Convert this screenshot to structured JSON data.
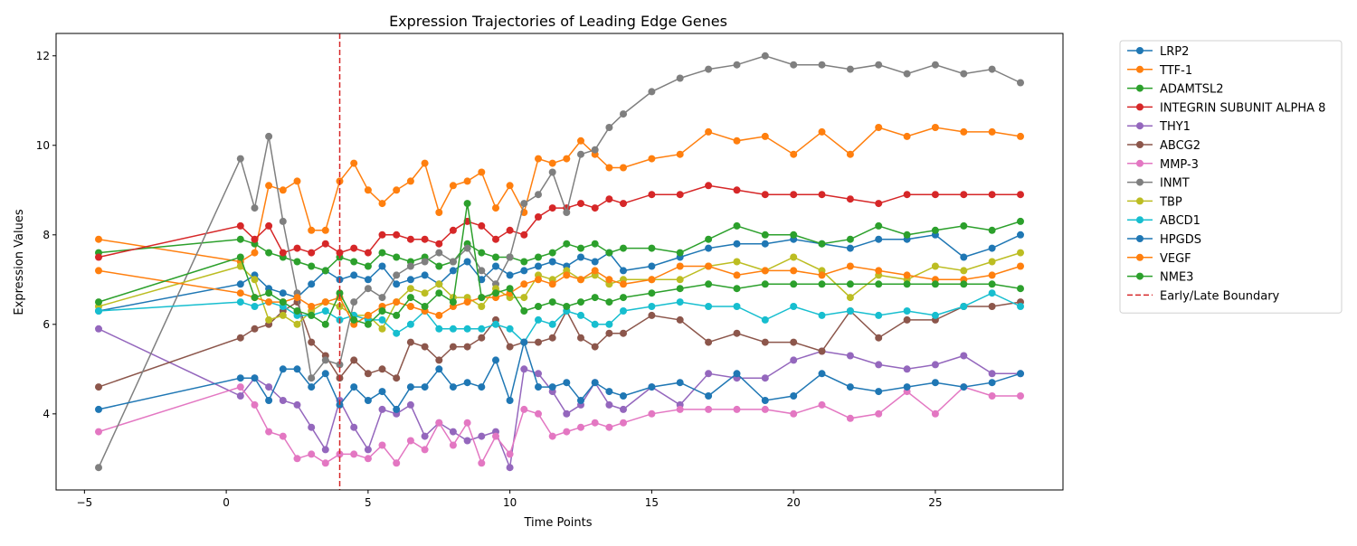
{
  "chart_data": {
    "type": "line",
    "title": "Expression Trajectories of Leading Edge Genes",
    "xlabel": "Time Points",
    "ylabel": "Expression Values",
    "xlim": [
      -6,
      29.5
    ],
    "ylim": [
      2.3,
      12.5
    ],
    "xticks": [
      -5,
      0,
      5,
      10,
      15,
      20,
      25
    ],
    "yticks": [
      4,
      6,
      8,
      10,
      12
    ],
    "grid": false,
    "legend_position": "outside-right",
    "boundary": {
      "x": 4,
      "label": "Early/Late Boundary",
      "color": "#d62728"
    },
    "x": [
      -4.5,
      0.5,
      1,
      1.5,
      2,
      2.5,
      3,
      3.5,
      4,
      4.5,
      5,
      5.5,
      6,
      6.5,
      7,
      7.5,
      8,
      8.5,
      9,
      9.5,
      10,
      10.5,
      11,
      11.5,
      12,
      12.5,
      13,
      13.5,
      14,
      15,
      16,
      17,
      18,
      19,
      20,
      21,
      22,
      23,
      24,
      25,
      26,
      27,
      28
    ],
    "series": [
      {
        "name": "LRP2",
        "color": "#1f77b4",
        "values": [
          6.3,
          6.9,
          7.1,
          6.8,
          6.7,
          6.6,
          6.9,
          7.2,
          7.0,
          7.1,
          7.0,
          7.3,
          6.9,
          7.0,
          7.1,
          6.9,
          7.2,
          7.4,
          7.0,
          7.3,
          7.1,
          7.2,
          7.3,
          7.4,
          7.3,
          7.5,
          7.4,
          7.6,
          7.2,
          7.3,
          7.5,
          7.7,
          7.8,
          7.8,
          7.9,
          7.8,
          7.7,
          7.9,
          7.9,
          8.0,
          7.5,
          7.7,
          8.0
        ]
      },
      {
        "name": "TTF-1",
        "color": "#ff7f0e",
        "values": [
          7.9,
          7.4,
          7.6,
          9.1,
          9.0,
          9.2,
          8.1,
          8.1,
          9.2,
          9.6,
          9.0,
          8.7,
          9.0,
          9.2,
          9.6,
          8.5,
          9.1,
          9.2,
          9.4,
          8.6,
          9.1,
          8.5,
          9.7,
          9.6,
          9.7,
          10.1,
          9.8,
          9.5,
          9.5,
          9.7,
          9.8,
          10.3,
          10.1,
          10.2,
          9.8,
          10.3,
          9.8,
          10.4,
          10.2,
          10.4,
          10.3,
          10.3,
          10.2
        ]
      },
      {
        "name": "ADAMTSL2",
        "color": "#2ca02c",
        "values": [
          7.6,
          7.9,
          7.8,
          7.6,
          7.5,
          7.4,
          7.3,
          7.2,
          7.5,
          7.4,
          7.3,
          7.6,
          7.5,
          7.4,
          7.5,
          7.3,
          7.4,
          7.8,
          7.6,
          7.5,
          7.5,
          7.4,
          7.5,
          7.6,
          7.8,
          7.7,
          7.8,
          7.6,
          7.7,
          7.7,
          7.6,
          7.9,
          8.2,
          8.0,
          8.0,
          7.8,
          7.9,
          8.2,
          8.0,
          8.1,
          8.2,
          8.1,
          8.3
        ]
      },
      {
        "name": "INTEGRIN SUBUNIT ALPHA 8",
        "color": "#d62728",
        "values": [
          7.5,
          8.2,
          7.9,
          8.2,
          7.6,
          7.7,
          7.6,
          7.8,
          7.6,
          7.7,
          7.6,
          8.0,
          8.0,
          7.9,
          7.9,
          7.8,
          8.1,
          8.3,
          8.2,
          7.9,
          8.1,
          8.0,
          8.4,
          8.6,
          8.6,
          8.7,
          8.6,
          8.8,
          8.7,
          8.9,
          8.9,
          9.1,
          9.0,
          8.9,
          8.9,
          8.9,
          8.8,
          8.7,
          8.9,
          8.9,
          8.9,
          8.9,
          8.9
        ]
      },
      {
        "name": "THY1",
        "color": "#9467bd",
        "values": [
          5.9,
          4.4,
          4.8,
          4.6,
          4.3,
          4.2,
          3.7,
          3.2,
          4.3,
          3.7,
          3.2,
          4.1,
          4.0,
          4.2,
          3.5,
          3.8,
          3.6,
          3.4,
          3.5,
          3.6,
          2.8,
          5.0,
          4.9,
          4.5,
          4.0,
          4.2,
          4.7,
          4.2,
          4.1,
          4.6,
          4.2,
          4.9,
          4.8,
          4.8,
          5.2,
          5.4,
          5.3,
          5.1,
          5.0,
          5.1,
          5.3,
          4.9,
          4.9
        ]
      },
      {
        "name": "ABCG2",
        "color": "#8c564b",
        "values": [
          4.6,
          5.7,
          5.9,
          6.0,
          6.3,
          6.5,
          5.6,
          5.3,
          4.8,
          5.2,
          4.9,
          5.0,
          4.8,
          5.6,
          5.5,
          5.2,
          5.5,
          5.5,
          5.7,
          6.1,
          5.5,
          5.6,
          5.6,
          5.7,
          6.3,
          5.7,
          5.5,
          5.8,
          5.8,
          6.2,
          6.1,
          5.6,
          5.8,
          5.6,
          5.6,
          5.4,
          6.3,
          5.7,
          6.1,
          6.1,
          6.4,
          6.4,
          6.5
        ]
      },
      {
        "name": "MMP-3",
        "color": "#e377c2",
        "values": [
          3.6,
          4.6,
          4.2,
          3.6,
          3.5,
          3.0,
          3.1,
          2.9,
          3.1,
          3.1,
          3.0,
          3.3,
          2.9,
          3.4,
          3.2,
          3.8,
          3.3,
          3.8,
          2.9,
          3.5,
          3.1,
          4.1,
          4.0,
          3.5,
          3.6,
          3.7,
          3.8,
          3.7,
          3.8,
          4.0,
          4.1,
          4.1,
          4.1,
          4.1,
          4.0,
          4.2,
          3.9,
          4.0,
          4.5,
          4.0,
          4.6,
          4.4,
          4.4
        ]
      },
      {
        "name": "INMT",
        "color": "#7f7f7f",
        "values": [
          2.8,
          9.7,
          8.6,
          10.2,
          8.3,
          6.7,
          4.8,
          5.2,
          5.1,
          6.5,
          6.8,
          6.6,
          7.1,
          7.3,
          7.4,
          7.6,
          7.4,
          7.7,
          7.2,
          6.9,
          7.5,
          8.7,
          8.9,
          9.4,
          8.5,
          9.8,
          9.9,
          10.4,
          10.7,
          11.2,
          11.5,
          11.7,
          11.8,
          12.0,
          11.8,
          11.8,
          11.7,
          11.8,
          11.6,
          11.8,
          11.6,
          11.7,
          11.4
        ]
      },
      {
        "name": "TBP",
        "color": "#bcbd22",
        "values": [
          6.4,
          7.3,
          7.0,
          6.1,
          6.2,
          6.0,
          6.3,
          6.5,
          6.4,
          6.2,
          6.2,
          5.9,
          6.5,
          6.8,
          6.7,
          6.9,
          6.6,
          6.6,
          6.4,
          6.8,
          6.6,
          6.6,
          7.1,
          7.0,
          7.2,
          7.0,
          7.1,
          6.9,
          7.0,
          7.0,
          7.0,
          7.3,
          7.4,
          7.2,
          7.5,
          7.2,
          6.6,
          7.1,
          7.0,
          7.3,
          7.2,
          7.4,
          7.6
        ]
      },
      {
        "name": "ABCD1",
        "color": "#17becf",
        "values": [
          6.3,
          6.5,
          6.4,
          6.5,
          6.4,
          6.2,
          6.2,
          6.3,
          6.1,
          6.2,
          6.1,
          6.1,
          5.8,
          6.0,
          6.3,
          5.9,
          5.9,
          5.9,
          5.9,
          6.0,
          5.9,
          5.6,
          6.1,
          6.0,
          6.3,
          6.2,
          6.0,
          6.0,
          6.3,
          6.4,
          6.5,
          6.4,
          6.4,
          6.1,
          6.4,
          6.2,
          6.3,
          6.2,
          6.3,
          6.2,
          6.4,
          6.7,
          6.4
        ]
      },
      {
        "name": "HPGDS",
        "color": "#1f77b4",
        "values": [
          4.1,
          4.8,
          4.8,
          4.3,
          5.0,
          5.0,
          4.6,
          4.9,
          4.2,
          4.6,
          4.3,
          4.5,
          4.1,
          4.6,
          4.6,
          5.0,
          4.6,
          4.7,
          4.6,
          5.2,
          4.3,
          5.6,
          4.6,
          4.6,
          4.7,
          4.3,
          4.7,
          4.5,
          4.4,
          4.6,
          4.7,
          4.4,
          4.9,
          4.3,
          4.4,
          4.9,
          4.6,
          4.5,
          4.6,
          4.7,
          4.6,
          4.7,
          4.9
        ]
      },
      {
        "name": "VEGF",
        "color": "#ff7f0e",
        "values": [
          7.2,
          6.7,
          6.6,
          6.5,
          6.5,
          6.6,
          6.4,
          6.5,
          6.6,
          6.0,
          6.2,
          6.4,
          6.5,
          6.4,
          6.3,
          6.2,
          6.4,
          6.5,
          6.6,
          6.6,
          6.7,
          6.9,
          7.0,
          6.9,
          7.1,
          7.0,
          7.2,
          7.0,
          6.9,
          7.0,
          7.3,
          7.3,
          7.1,
          7.2,
          7.2,
          7.1,
          7.3,
          7.2,
          7.1,
          7.0,
          7.0,
          7.1,
          7.3
        ]
      },
      {
        "name": "NME3",
        "color": "#2ca02c",
        "values": [
          6.5,
          7.5,
          6.6,
          6.7,
          6.5,
          6.3,
          6.2,
          6.0,
          6.7,
          6.1,
          6.0,
          6.3,
          6.2,
          6.6,
          6.4,
          6.7,
          6.5,
          8.7,
          6.6,
          6.7,
          6.8,
          6.3,
          6.4,
          6.5,
          6.4,
          6.5,
          6.6,
          6.5,
          6.6,
          6.7,
          6.8,
          6.9,
          6.8,
          6.9,
          6.9,
          6.9,
          6.9,
          6.9,
          6.9,
          6.9,
          6.9,
          6.9,
          6.8
        ]
      }
    ]
  }
}
